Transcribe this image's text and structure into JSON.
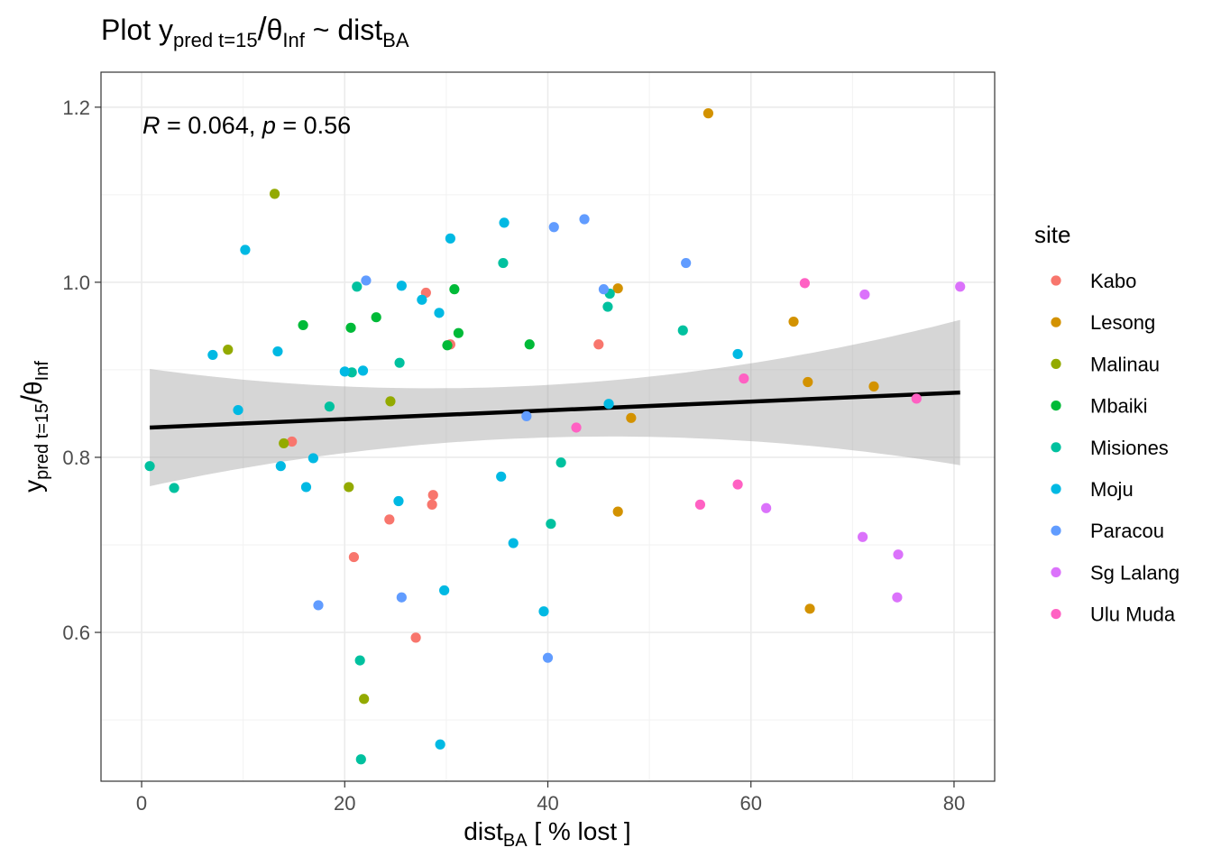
{
  "chart_data": {
    "type": "scatter",
    "title_parts": {
      "prefix": "Plot ",
      "y": "y",
      "y_sub": "pred t=15",
      "slash": "/",
      "theta": "θ",
      "theta_sub": "Inf",
      "tilde": " ~ ",
      "x": "dist",
      "x_sub": "BA"
    },
    "xlabel_parts": {
      "main": "dist",
      "sub": "BA",
      "rest": " [ % lost ]"
    },
    "ylabel_parts": {
      "y": "y",
      "y_sub": "pred t=15",
      "slash": "/",
      "theta": "θ",
      "theta_sub": "Inf"
    },
    "annotation": {
      "r_label": "R",
      "r_value": " = 0.064, ",
      "p_label": "p",
      "p_value": " = 0.56"
    },
    "xlim": [
      -4,
      84
    ],
    "ylim": [
      0.43,
      1.24
    ],
    "x_ticks": [
      0,
      20,
      40,
      60,
      80
    ],
    "x_tick_labels": [
      "0",
      "20",
      "40",
      "60",
      "80"
    ],
    "y_ticks": [
      0.6,
      0.8,
      1.0,
      1.2
    ],
    "y_tick_labels": [
      "0.6",
      "0.8",
      "1.0",
      "1.2"
    ],
    "grid": true,
    "legend": {
      "title": "site",
      "position": "right",
      "entries": [
        {
          "name": "Kabo",
          "color": "#F8766D"
        },
        {
          "name": "Lesong",
          "color": "#D39200"
        },
        {
          "name": "Malinau",
          "color": "#93AA00"
        },
        {
          "name": "Mbaiki",
          "color": "#00BA38"
        },
        {
          "name": "Misiones",
          "color": "#00C19F"
        },
        {
          "name": "Moju",
          "color": "#00B9E3"
        },
        {
          "name": "Paracou",
          "color": "#619CFF"
        },
        {
          "name": "Sg Lalang",
          "color": "#DB72FB"
        },
        {
          "name": "Ulu Muda",
          "color": "#FF61C3"
        }
      ]
    },
    "regression": {
      "x": [
        0.8,
        80.6
      ],
      "y": [
        0.834,
        0.874
      ],
      "ci_lower": [
        0.767,
        0.791
      ],
      "ci_upper": [
        0.901,
        0.957
      ],
      "ci_mid_x": 30.5,
      "ci_mid_lower": 0.817,
      "ci_mid_upper": 0.879
    },
    "series": [
      {
        "name": "Kabo",
        "color": "#F8766D",
        "points": [
          [
            28.0,
            0.988
          ],
          [
            30.4,
            0.929
          ],
          [
            45.0,
            0.929
          ],
          [
            14.8,
            0.818
          ],
          [
            28.7,
            0.757
          ],
          [
            28.6,
            0.746
          ],
          [
            24.4,
            0.729
          ],
          [
            20.9,
            0.686
          ],
          [
            27.0,
            0.594
          ]
        ]
      },
      {
        "name": "Lesong",
        "color": "#D39200",
        "points": [
          [
            55.8,
            1.193
          ],
          [
            46.9,
            0.993
          ],
          [
            64.2,
            0.955
          ],
          [
            65.6,
            0.886
          ],
          [
            72.1,
            0.881
          ],
          [
            48.2,
            0.845
          ],
          [
            46.9,
            0.738
          ],
          [
            65.8,
            0.627
          ]
        ]
      },
      {
        "name": "Malinau",
        "color": "#93AA00",
        "points": [
          [
            13.1,
            1.101
          ],
          [
            8.5,
            0.923
          ],
          [
            24.5,
            0.864
          ],
          [
            14.0,
            0.816
          ],
          [
            20.4,
            0.766
          ],
          [
            21.9,
            0.524
          ]
        ]
      },
      {
        "name": "Mbaiki",
        "color": "#00BA38",
        "points": [
          [
            30.8,
            0.992
          ],
          [
            15.9,
            0.951
          ],
          [
            20.6,
            0.948
          ],
          [
            23.1,
            0.96
          ],
          [
            31.2,
            0.942
          ],
          [
            30.1,
            0.928
          ],
          [
            38.2,
            0.929
          ]
        ]
      },
      {
        "name": "Misiones",
        "color": "#00C19F",
        "points": [
          [
            35.6,
            1.022
          ],
          [
            21.2,
            0.995
          ],
          [
            46.1,
            0.987
          ],
          [
            45.9,
            0.972
          ],
          [
            53.3,
            0.945
          ],
          [
            25.4,
            0.908
          ],
          [
            20.7,
            0.897
          ],
          [
            18.5,
            0.858
          ],
          [
            41.3,
            0.794
          ],
          [
            0.8,
            0.79
          ],
          [
            3.2,
            0.765
          ],
          [
            40.3,
            0.724
          ],
          [
            21.5,
            0.568
          ],
          [
            21.6,
            0.455
          ]
        ]
      },
      {
        "name": "Moju",
        "color": "#00B9E3",
        "points": [
          [
            35.7,
            1.068
          ],
          [
            30.4,
            1.05
          ],
          [
            10.2,
            1.037
          ],
          [
            25.6,
            0.996
          ],
          [
            27.6,
            0.98
          ],
          [
            29.3,
            0.965
          ],
          [
            7.0,
            0.917
          ],
          [
            13.4,
            0.921
          ],
          [
            58.7,
            0.918
          ],
          [
            20.0,
            0.898
          ],
          [
            21.8,
            0.899
          ],
          [
            9.5,
            0.854
          ],
          [
            46.0,
            0.861
          ],
          [
            16.9,
            0.799
          ],
          [
            13.7,
            0.79
          ],
          [
            16.2,
            0.766
          ],
          [
            35.4,
            0.778
          ],
          [
            25.3,
            0.75
          ],
          [
            36.6,
            0.702
          ],
          [
            29.8,
            0.648
          ],
          [
            39.6,
            0.624
          ],
          [
            29.4,
            0.472
          ]
        ]
      },
      {
        "name": "Paracou",
        "color": "#619CFF",
        "points": [
          [
            43.6,
            1.072
          ],
          [
            40.6,
            1.063
          ],
          [
            53.6,
            1.022
          ],
          [
            22.1,
            1.002
          ],
          [
            45.5,
            0.992
          ],
          [
            37.9,
            0.847
          ],
          [
            17.4,
            0.631
          ],
          [
            25.6,
            0.64
          ],
          [
            40.0,
            0.571
          ]
        ]
      },
      {
        "name": "Sg Lalang",
        "color": "#DB72FB",
        "points": [
          [
            80.6,
            0.995
          ],
          [
            71.2,
            0.986
          ],
          [
            61.5,
            0.742
          ],
          [
            71.0,
            0.709
          ],
          [
            74.5,
            0.689
          ],
          [
            74.4,
            0.64
          ]
        ]
      },
      {
        "name": "Ulu Muda",
        "color": "#FF61C3",
        "points": [
          [
            65.3,
            0.999
          ],
          [
            59.3,
            0.89
          ],
          [
            76.3,
            0.867
          ],
          [
            42.8,
            0.834
          ],
          [
            58.7,
            0.769
          ],
          [
            55.0,
            0.746
          ]
        ]
      }
    ]
  }
}
